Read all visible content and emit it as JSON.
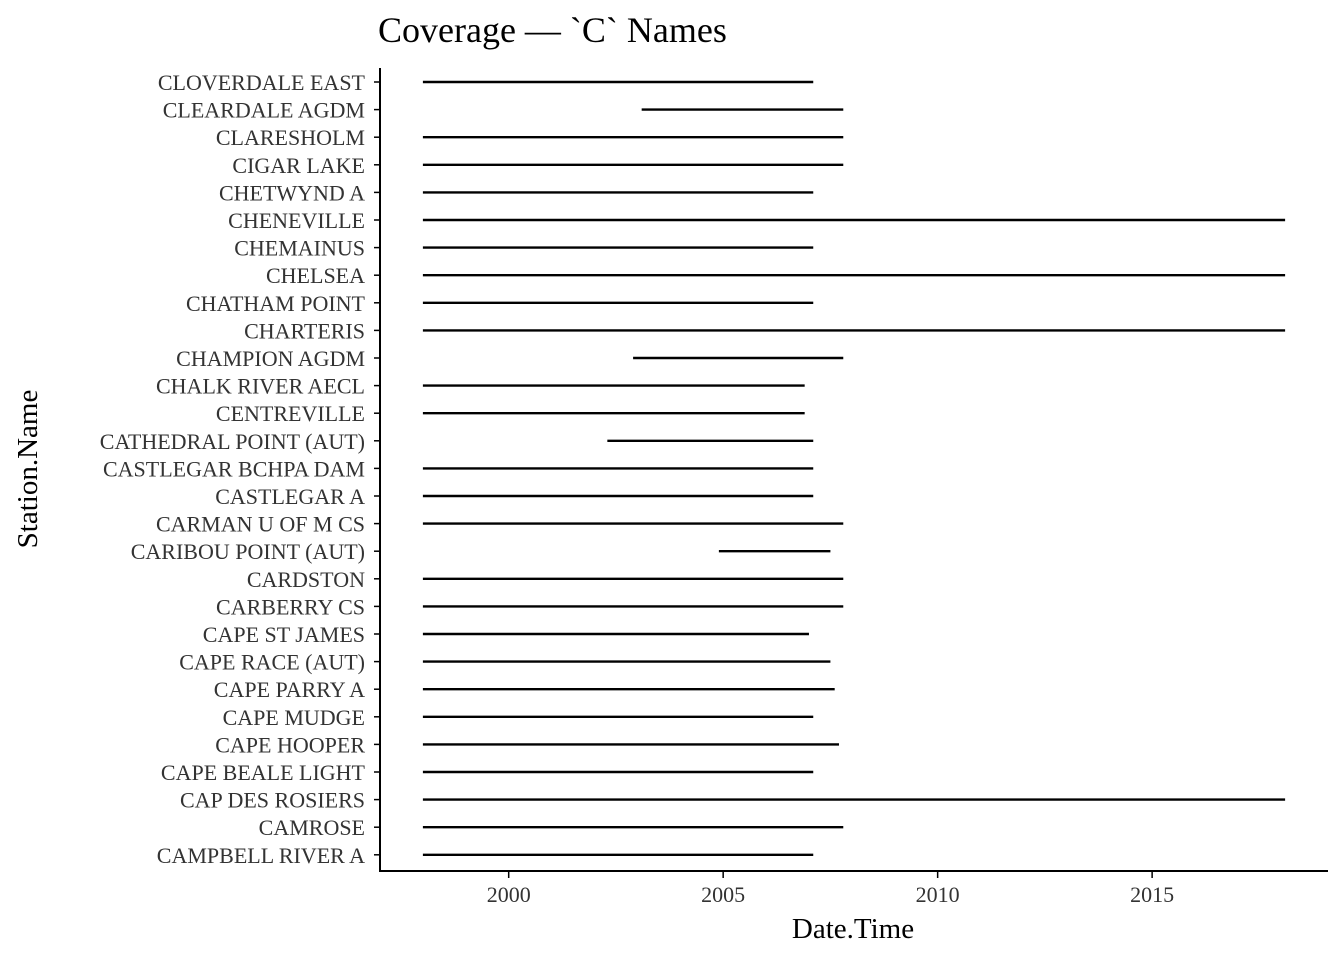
{
  "chart_data": {
    "type": "segment",
    "title": "Coverage — `C` Names",
    "xlabel": "Date.Time",
    "ylabel": "Station.Name",
    "xlim": [
      1997.0,
      2019.1
    ],
    "x_ticks": [
      2000,
      2005,
      2010,
      2015
    ],
    "x_tick_labels": [
      "2000",
      "2005",
      "2010",
      "2015"
    ],
    "grid": false,
    "legend": "none",
    "stations": [
      {
        "name": "CLOVERDALE EAST",
        "start": 1998.0,
        "end": 2007.1
      },
      {
        "name": "CLEARDALE AGDM",
        "start": 2003.1,
        "end": 2007.8
      },
      {
        "name": "CLARESHOLM",
        "start": 1998.0,
        "end": 2007.8
      },
      {
        "name": "CIGAR LAKE",
        "start": 1998.0,
        "end": 2007.8
      },
      {
        "name": "CHETWYND A",
        "start": 1998.0,
        "end": 2007.1
      },
      {
        "name": "CHENEVILLE",
        "start": 1998.0,
        "end": 2018.1
      },
      {
        "name": "CHEMAINUS",
        "start": 1998.0,
        "end": 2007.1
      },
      {
        "name": "CHELSEA",
        "start": 1998.0,
        "end": 2018.1
      },
      {
        "name": "CHATHAM POINT",
        "start": 1998.0,
        "end": 2007.1
      },
      {
        "name": "CHARTERIS",
        "start": 1998.0,
        "end": 2018.1
      },
      {
        "name": "CHAMPION AGDM",
        "start": 2002.9,
        "end": 2007.8
      },
      {
        "name": "CHALK RIVER AECL",
        "start": 1998.0,
        "end": 2006.9
      },
      {
        "name": "CENTREVILLE",
        "start": 1998.0,
        "end": 2006.9
      },
      {
        "name": "CATHEDRAL POINT (AUT)",
        "start": 2002.3,
        "end": 2007.1
      },
      {
        "name": "CASTLEGAR BCHPA DAM",
        "start": 1998.0,
        "end": 2007.1
      },
      {
        "name": "CASTLEGAR A",
        "start": 1998.0,
        "end": 2007.1
      },
      {
        "name": "CARMAN U OF M CS",
        "start": 1998.0,
        "end": 2007.8
      },
      {
        "name": "CARIBOU POINT (AUT)",
        "start": 2004.9,
        "end": 2007.5
      },
      {
        "name": "CARDSTON",
        "start": 1998.0,
        "end": 2007.8
      },
      {
        "name": "CARBERRY CS",
        "start": 1998.0,
        "end": 2007.8
      },
      {
        "name": "CAPE ST JAMES",
        "start": 1998.0,
        "end": 2007.0
      },
      {
        "name": "CAPE RACE (AUT)",
        "start": 1998.0,
        "end": 2007.5
      },
      {
        "name": "CAPE PARRY A",
        "start": 1998.0,
        "end": 2007.6
      },
      {
        "name": "CAPE MUDGE",
        "start": 1998.0,
        "end": 2007.1
      },
      {
        "name": "CAPE HOOPER",
        "start": 1998.0,
        "end": 2007.7
      },
      {
        "name": "CAPE BEALE LIGHT",
        "start": 1998.0,
        "end": 2007.1
      },
      {
        "name": "CAP DES ROSIERS",
        "start": 1998.0,
        "end": 2018.1
      },
      {
        "name": "CAMROSE",
        "start": 1998.0,
        "end": 2007.8
      },
      {
        "name": "CAMPBELL RIVER A",
        "start": 1998.0,
        "end": 2007.1
      }
    ]
  }
}
